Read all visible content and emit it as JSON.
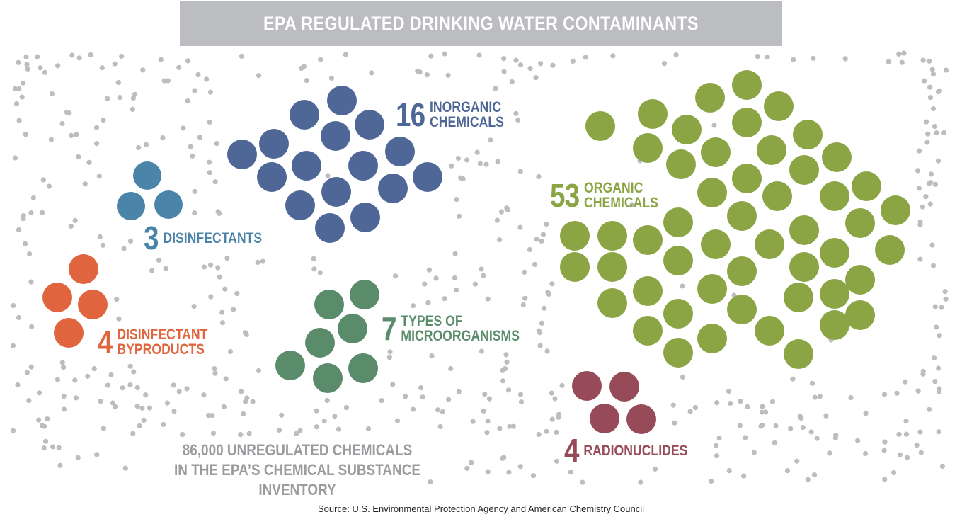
{
  "title": "EPA REGULATED DRINKING WATER CONTAMINANTS",
  "colors": {
    "inorganic": "#4f6797",
    "disinfectants": "#4a84a8",
    "byproducts": "#e0653f",
    "microorganisms": "#5a8c6c",
    "organic": "#8ba545",
    "radionuclides": "#974a58",
    "unregulated": "#bcbdc0"
  },
  "groups": [
    {
      "id": "inorganic",
      "count": "16",
      "lines": [
        "INORGANIC",
        "CHEMICALS"
      ]
    },
    {
      "id": "disinfectants",
      "count": "3",
      "lines": [
        "DISINFECTANTS"
      ]
    },
    {
      "id": "byproducts",
      "count": "4",
      "lines": [
        "DISINFECTANT",
        "BYPRODUCTS"
      ]
    },
    {
      "id": "microorganisms",
      "count": "7",
      "lines": [
        "TYPES OF",
        "MICROORGANISMS"
      ]
    },
    {
      "id": "organic",
      "count": "53",
      "lines": [
        "ORGANIC",
        "CHEMICALS"
      ]
    },
    {
      "id": "radionuclides",
      "count": "4",
      "lines": [
        "RADIONUCLIDES"
      ]
    }
  ],
  "unregulated_lines": [
    "86,000 UNREGULATED CHEMICALS",
    "IN THE EPA’S CHEMICAL SUBSTANCE INVENTORY"
  ],
  "source": "Source: U.S. Environmental Protection Agency and American Chemistry Council"
}
